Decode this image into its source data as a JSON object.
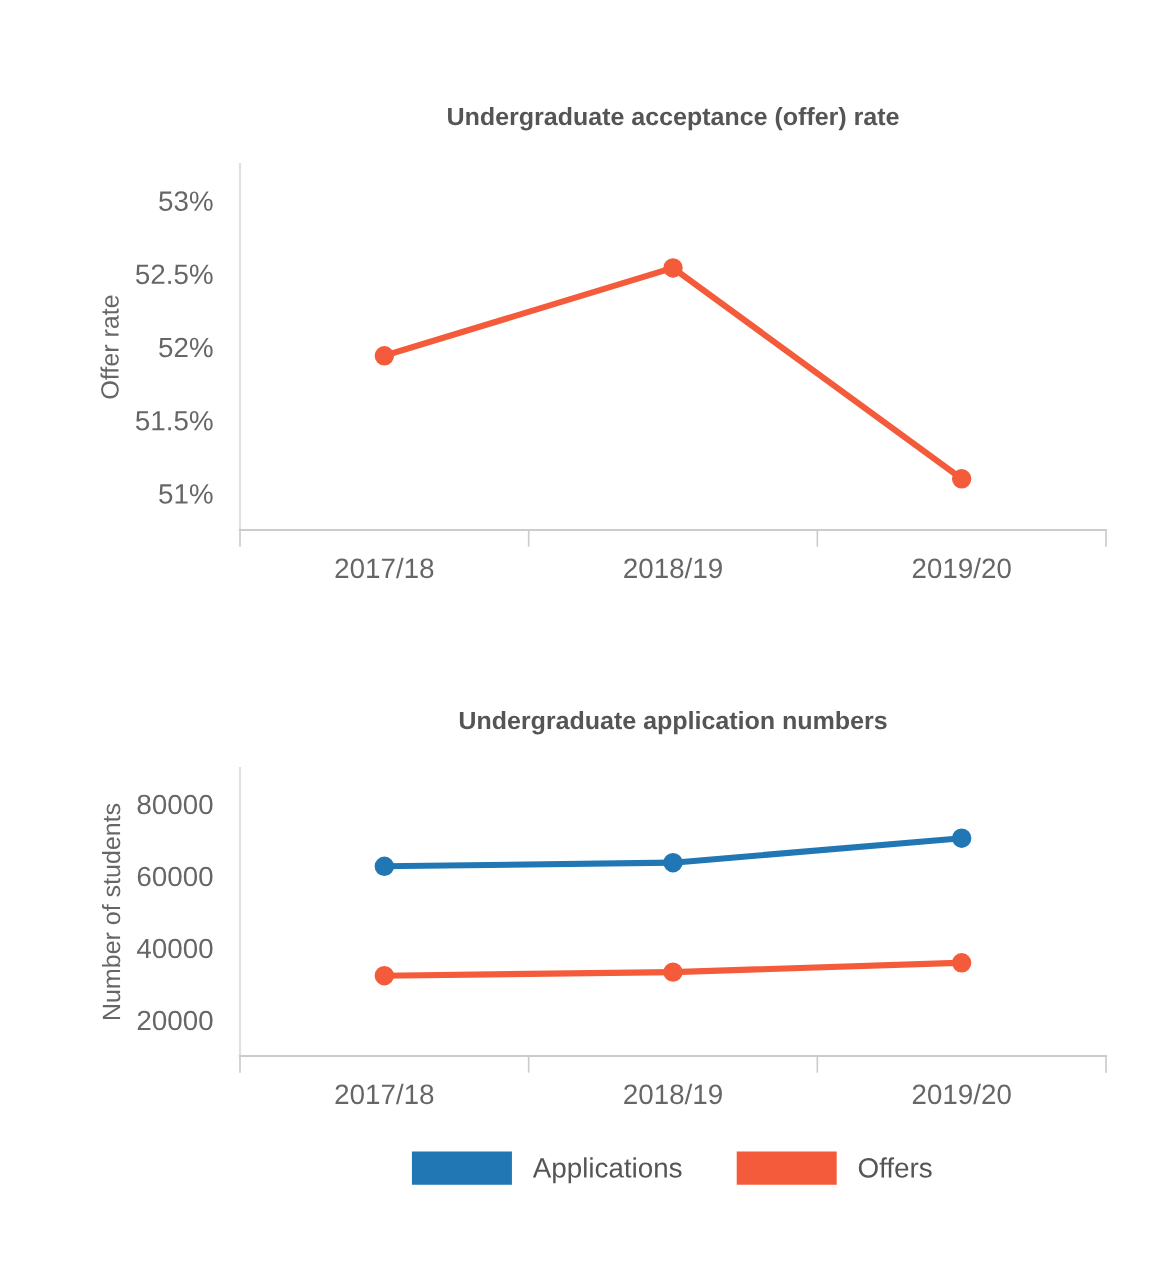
{
  "chart_data": [
    {
      "type": "line",
      "title": "Undergraduate acceptance (offer) rate",
      "ylabel": "Offer rate",
      "categories": [
        "2017/18",
        "2018/19",
        "2019/20"
      ],
      "series": [
        {
          "color": "#f45b3a",
          "values": [
            51.94,
            52.54,
            51.1
          ]
        }
      ],
      "ylim": [
        50.75,
        53.25
      ],
      "yticks": [
        {
          "value": 51,
          "label": "51%"
        },
        {
          "value": 51.5,
          "label": "51.5%"
        },
        {
          "value": 52,
          "label": "52%"
        },
        {
          "value": 52.5,
          "label": "52.5%"
        },
        {
          "value": 53,
          "label": "53%"
        }
      ],
      "marker": "circle",
      "grid": false,
      "legend": false
    },
    {
      "type": "line",
      "title": "Undergraduate application numbers",
      "ylabel": "Number of students",
      "categories": [
        "2017/18",
        "2018/19",
        "2019/20"
      ],
      "series": [
        {
          "name": "Applications",
          "color": "#2177b4",
          "values": [
            62700,
            63700,
            70500
          ]
        },
        {
          "name": "Offers",
          "color": "#f45b3a",
          "values": [
            32300,
            33300,
            35900
          ]
        }
      ],
      "ylim": [
        10000,
        90000
      ],
      "yticks": [
        20000,
        40000,
        60000,
        80000
      ],
      "marker": "circle",
      "grid": false,
      "legend": "bottom"
    }
  ]
}
